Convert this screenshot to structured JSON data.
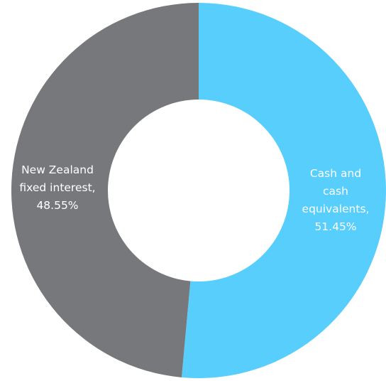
{
  "chart_data": {
    "type": "pie",
    "variant": "donut",
    "start": "top",
    "direction": "clockwise",
    "slices": [
      {
        "label_lines": [
          "Cash and",
          "cash",
          "equivalents,",
          "51.45%"
        ],
        "category": "Cash and cash equivalents",
        "value": 51.45,
        "color": "#58CEFC"
      },
      {
        "label_lines": [
          "New Zealand",
          "fixed interest,",
          "48.55%"
        ],
        "category": "New Zealand fixed interest",
        "value": 48.55,
        "color": "#77787B"
      }
    ]
  }
}
